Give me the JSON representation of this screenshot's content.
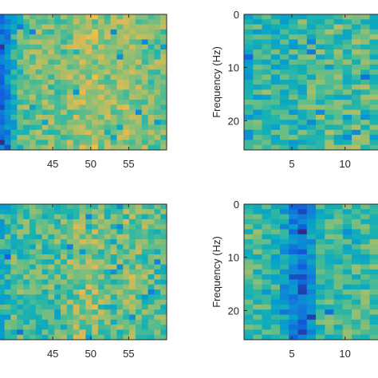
{
  "chart_data": [
    {
      "type": "heatmap",
      "position": "top-left",
      "x_range": [
        37,
        60
      ],
      "y_range": [
        0,
        25.5
      ],
      "x_ticks": [
        45,
        50,
        55
      ],
      "x_tick_labels": [
        "45",
        "50",
        "55"
      ],
      "y_ticks": [],
      "y_tick_labels": [],
      "ylabel": "",
      "y_reversed": true,
      "grid": false,
      "colormap": "parula",
      "pattern": {
        "seed": 11,
        "base": 0.66,
        "noise": 0.14,
        "bands": [
          {
            "center": 37.5,
            "width": 2.2,
            "depth": 0.35
          },
          {
            "center": 38.5,
            "width": 1.5,
            "depth": 0.15
          }
        ],
        "bright": [
          {
            "center": 50,
            "width": 2.5,
            "gain": 0.08
          },
          {
            "center": 55,
            "width": 1.5,
            "gain": 0.06
          }
        ]
      }
    },
    {
      "type": "heatmap",
      "position": "top-right",
      "x_range": [
        0.5,
        14
      ],
      "y_range": [
        0,
        25.5
      ],
      "x_ticks": [
        5,
        10
      ],
      "x_tick_labels": [
        "5",
        "10"
      ],
      "y_ticks": [
        0,
        10,
        20
      ],
      "y_tick_labels": [
        "0",
        "10",
        "20"
      ],
      "ylabel": "Frequency (Hz)",
      "y_reversed": true,
      "grid": false,
      "colormap": "parula",
      "pattern": {
        "seed": 23,
        "base": 0.6,
        "noise": 0.17,
        "bands": [
          {
            "center": 4.5,
            "width": 1.5,
            "depth": 0.08
          },
          {
            "center": 1.2,
            "width": 0.8,
            "depth": 0.12
          }
        ],
        "bright": []
      }
    },
    {
      "type": "heatmap",
      "position": "bottom-left",
      "x_range": [
        37,
        60
      ],
      "y_range": [
        0,
        25.5
      ],
      "x_ticks": [
        45,
        50,
        55
      ],
      "x_tick_labels": [
        "45",
        "50",
        "55"
      ],
      "y_ticks": [],
      "y_tick_labels": [],
      "ylabel": "",
      "y_reversed": true,
      "grid": false,
      "colormap": "parula",
      "pattern": {
        "seed": 37,
        "base": 0.6,
        "noise": 0.16,
        "bands": [
          {
            "center": 38,
            "width": 1.5,
            "depth": 0.1
          }
        ],
        "bright": [
          {
            "center": 49.5,
            "width": 2.5,
            "gain": 0.1
          },
          {
            "center": 55.5,
            "width": 1.5,
            "gain": 0.08
          }
        ]
      }
    },
    {
      "type": "heatmap",
      "position": "bottom-right",
      "x_range": [
        0.5,
        14
      ],
      "y_range": [
        0,
        25.5
      ],
      "x_ticks": [
        5,
        10
      ],
      "x_tick_labels": [
        "5",
        "10"
      ],
      "y_ticks": [
        0,
        10,
        20
      ],
      "y_tick_labels": [
        "0",
        "10",
        "20"
      ],
      "ylabel": "Frequency (Hz)",
      "y_reversed": true,
      "grid": false,
      "colormap": "parula",
      "pattern": {
        "seed": 53,
        "base": 0.58,
        "noise": 0.15,
        "bands": [
          {
            "center": 6,
            "width": 1.1,
            "depth": 0.36
          },
          {
            "center": 4.5,
            "width": 1.2,
            "depth": 0.12
          }
        ],
        "bright": []
      }
    }
  ]
}
